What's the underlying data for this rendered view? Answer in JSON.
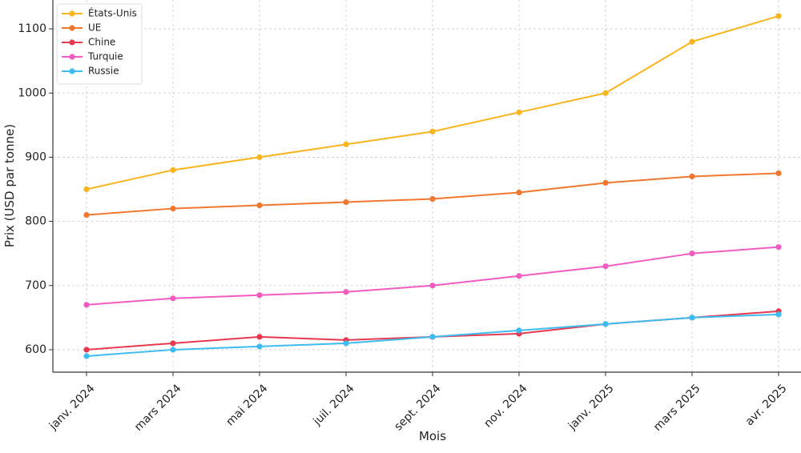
{
  "chart_data": {
    "type": "line",
    "xlabel": "Mois",
    "ylabel": "Prix (USD par tonne)",
    "categories": [
      "janv. 2024",
      "mars 2024",
      "mai 2024",
      "juil. 2024",
      "sept. 2024",
      "nov. 2024",
      "janv. 2025",
      "mars 2025",
      "avr. 2025"
    ],
    "ylim": [
      565,
      1145
    ],
    "yticks": [
      600,
      700,
      800,
      900,
      1000,
      1100
    ],
    "grid": true,
    "legend_position": "top-left",
    "series": [
      {
        "name": "États-Unis",
        "color": "#f9b51d",
        "values": [
          850,
          880,
          900,
          920,
          940,
          970,
          1000,
          1080,
          1120
        ]
      },
      {
        "name": "UE",
        "color": "#f1772f",
        "values": [
          810,
          820,
          825,
          830,
          835,
          845,
          860,
          870,
          875
        ]
      },
      {
        "name": "Chine",
        "color": "#e8384f",
        "values": [
          600,
          610,
          620,
          615,
          620,
          625,
          640,
          650,
          660
        ]
      },
      {
        "name": "Turquie",
        "color": "#f35bc1",
        "values": [
          670,
          680,
          685,
          690,
          700,
          715,
          730,
          750,
          760
        ]
      },
      {
        "name": "Russie",
        "color": "#3dbcf1",
        "values": [
          590,
          600,
          605,
          610,
          620,
          630,
          640,
          650,
          655
        ]
      }
    ]
  }
}
